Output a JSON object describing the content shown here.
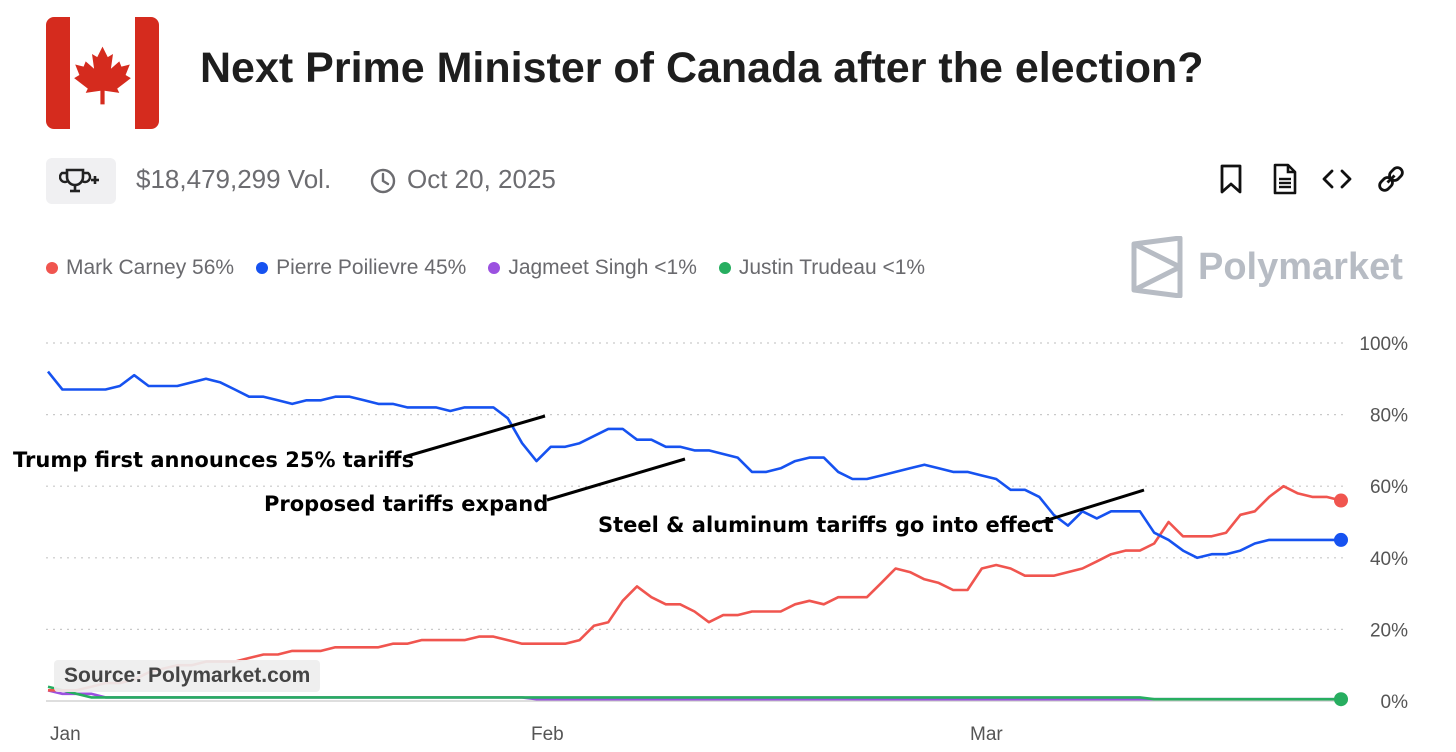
{
  "header": {
    "title": "Next Prime Minister of Canada after the election?",
    "volume": "$18,479,299 Vol.",
    "date": "Oct 20, 2025"
  },
  "brand": {
    "name": "Polymarket"
  },
  "source": "Source: Polymarket.com",
  "toolbar": {
    "trophy_icon": "trophy-plus-icon",
    "icons": [
      "bookmark-icon",
      "document-icon",
      "code-icon",
      "link-icon"
    ]
  },
  "colors": {
    "carney": "#f0554f",
    "poilievre": "#1652f0",
    "singh": "#9b51e0",
    "trudeau": "#27ae60",
    "flag_red": "#d52b1e"
  },
  "chart_data": {
    "type": "line",
    "x_labels": [
      "Jan",
      "Feb",
      "Mar"
    ],
    "ylim": [
      0,
      100
    ],
    "y_ticks": [
      "100%",
      "80%",
      "60%",
      "40%",
      "20%",
      "0%"
    ],
    "grid": true,
    "legend_position": "top-left",
    "series": [
      {
        "name": "Mark Carney",
        "legend": "Mark Carney 56%",
        "color": "#f0554f",
        "values": [
          3,
          3,
          3,
          4,
          5,
          5,
          6,
          8,
          9,
          10,
          10,
          11,
          11,
          11,
          12,
          13,
          13,
          14,
          14,
          14,
          15,
          15,
          15,
          15,
          16,
          16,
          17,
          17,
          17,
          17,
          18,
          18,
          17,
          16,
          16,
          16,
          16,
          17,
          21,
          22,
          28,
          32,
          29,
          27,
          27,
          25,
          22,
          24,
          24,
          25,
          25,
          25,
          27,
          28,
          27,
          29,
          29,
          29,
          33,
          37,
          36,
          34,
          33,
          31,
          31,
          37,
          38,
          37,
          35,
          35,
          35,
          36,
          37,
          39,
          41,
          42,
          42,
          44,
          50,
          46,
          46,
          46,
          47,
          52,
          53,
          57,
          60,
          58,
          57,
          57,
          56
        ]
      },
      {
        "name": "Pierre Poilievre",
        "legend": "Pierre Poilievre 45%",
        "color": "#1652f0",
        "values": [
          92,
          87,
          87,
          87,
          87,
          88,
          91,
          88,
          88,
          88,
          89,
          90,
          89,
          87,
          85,
          85,
          84,
          83,
          84,
          84,
          85,
          85,
          84,
          83,
          83,
          82,
          82,
          82,
          81,
          82,
          82,
          82,
          79,
          72,
          67,
          71,
          71,
          72,
          74,
          76,
          76,
          73,
          73,
          71,
          71,
          70,
          70,
          69,
          68,
          64,
          64,
          65,
          67,
          68,
          68,
          64,
          62,
          62,
          63,
          64,
          65,
          66,
          65,
          64,
          64,
          63,
          62,
          59,
          59,
          57,
          52,
          49,
          53,
          51,
          53,
          53,
          53,
          47,
          45,
          42,
          40,
          41,
          41,
          42,
          44,
          45,
          45,
          45,
          45,
          45,
          45
        ]
      },
      {
        "name": "Jagmeet Singh",
        "legend": "Jagmeet Singh <1%",
        "color": "#9b51e0",
        "values": [
          3,
          2,
          2,
          2,
          1,
          1,
          1,
          1,
          1,
          1,
          1,
          1,
          1,
          1,
          1,
          1,
          1,
          1,
          1,
          1,
          1,
          1,
          1,
          1,
          1,
          1,
          1,
          1,
          1,
          1,
          1,
          1,
          1,
          1,
          0.5,
          0.5,
          0.5,
          0.5,
          0.5,
          0.5,
          0.5,
          0.5,
          0.5,
          0.5,
          0.5,
          0.5,
          0.5,
          0.5,
          0.5,
          0.5,
          0.5,
          0.5,
          0.5,
          0.5,
          0.5,
          0.5,
          0.5,
          0.5,
          0.5,
          0.5,
          0.5,
          0.5,
          0.5,
          0.5,
          0.5,
          0.5,
          0.5,
          0.5,
          0.5,
          0.5,
          0.5,
          0.5,
          0.5,
          0.5,
          0.5,
          0.5,
          0.5,
          0.5,
          0.5,
          0.5,
          0.5,
          0.5,
          0.5,
          0.5,
          0.5,
          0.5,
          0.5,
          0.5,
          0.5,
          0.5,
          0.5
        ]
      },
      {
        "name": "Justin Trudeau",
        "legend": "Justin Trudeau <1%",
        "color": "#27ae60",
        "values": [
          4,
          3,
          2,
          1,
          1,
          1,
          1,
          1,
          1,
          1,
          1,
          1,
          1,
          1,
          1,
          1,
          1,
          1,
          1,
          1,
          1,
          1,
          1,
          1,
          1,
          1,
          1,
          1,
          1,
          1,
          1,
          1,
          1,
          1,
          1,
          1,
          1,
          1,
          1,
          1,
          1,
          1,
          1,
          1,
          1,
          1,
          1,
          1,
          1,
          1,
          1,
          1,
          1,
          1,
          1,
          1,
          1,
          1,
          1,
          1,
          1,
          1,
          1,
          1,
          1,
          1,
          1,
          1,
          1,
          1,
          1,
          1,
          1,
          1,
          1,
          1,
          1,
          0.5,
          0.5,
          0.5,
          0.5,
          0.5,
          0.5,
          0.5,
          0.5,
          0.5,
          0.5,
          0.5,
          0.5,
          0.5,
          0.5
        ]
      }
    ],
    "annotations": [
      "Trump first announces 25% tariffs",
      "Proposed tariffs expand",
      "Steel & aluminum tariffs go into effect"
    ]
  }
}
